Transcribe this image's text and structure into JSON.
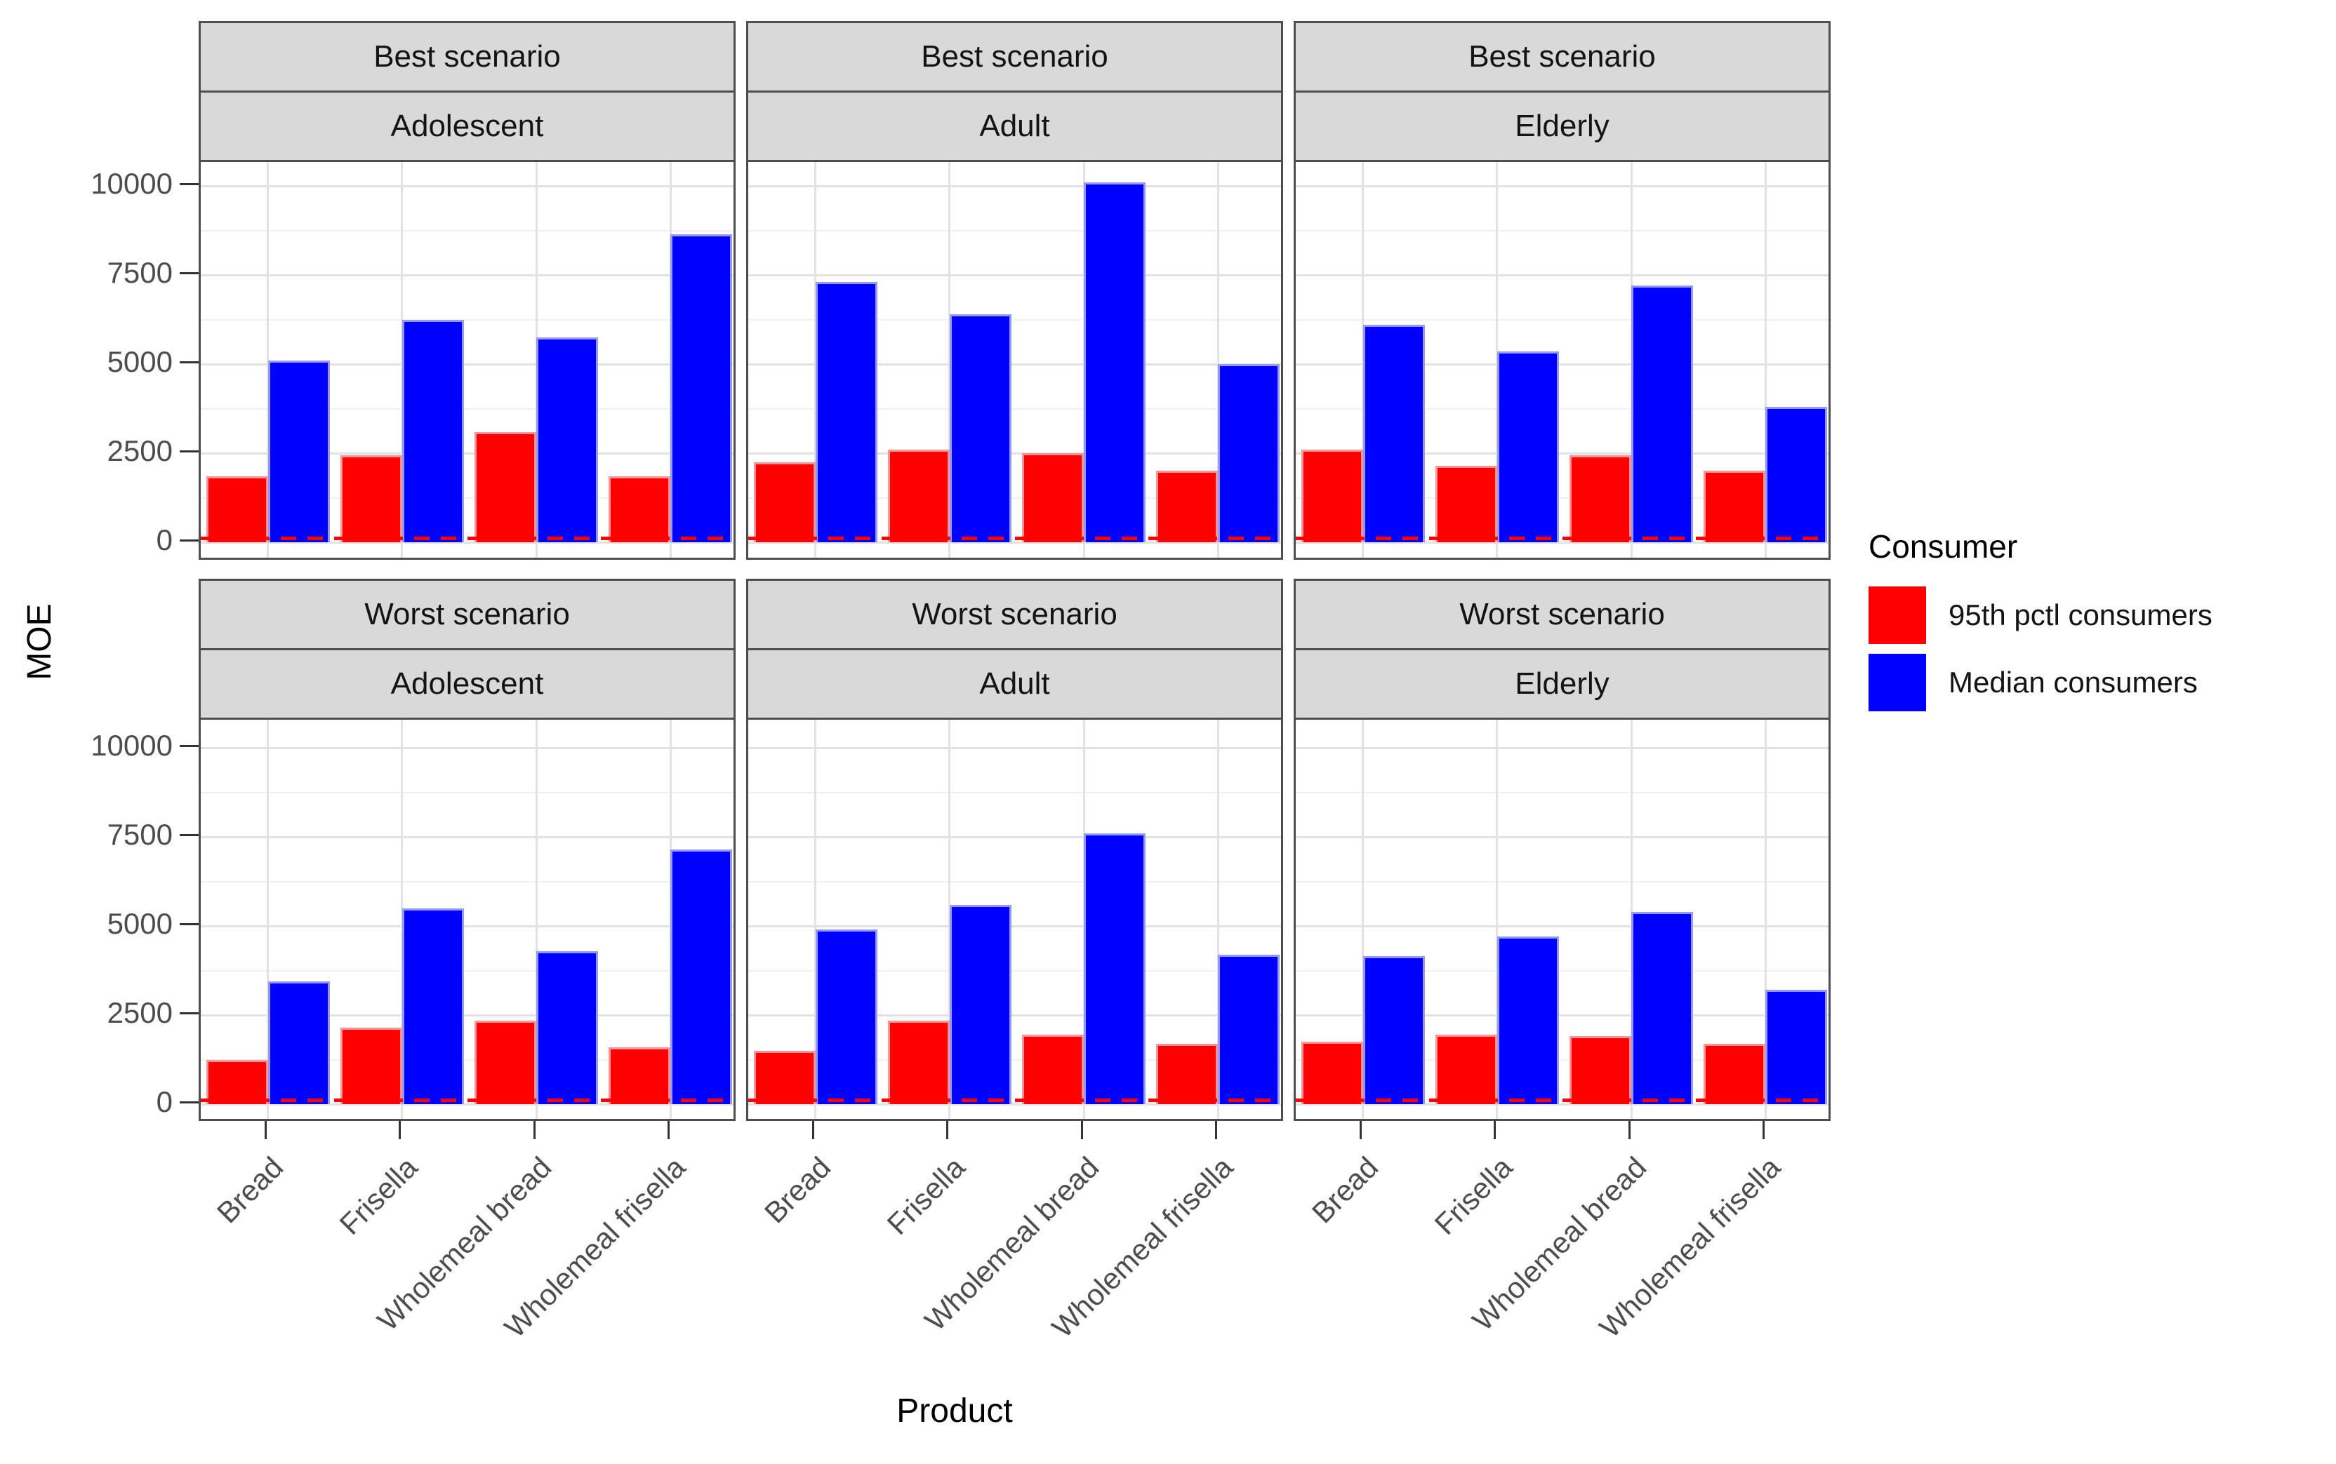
{
  "figure": {
    "background": "#FFFFFF"
  },
  "axes": {
    "y_title": "MOE",
    "x_title": "Product",
    "y_tick_labels": [
      "0",
      "2500",
      "5000",
      "7500",
      "10000"
    ]
  },
  "legend": {
    "title": "Consumer",
    "items": [
      {
        "label": "95th pctl consumers",
        "color": "#FF0000",
        "edge": "#FF9396"
      },
      {
        "label": "Median consumers",
        "color": "#0000FF",
        "edge": "#9598FF"
      }
    ]
  },
  "colors": {
    "strip_background": "#D9D9D9",
    "panel_border": "#4E4E4E",
    "grid_major": "#E2E2E2",
    "grid_minor": "#F0F0F0",
    "tick_text": "#4D4D4D",
    "reference_line": "#FF0000"
  },
  "chart_data": {
    "type": "bar",
    "title": "",
    "xlabel": "Product",
    "ylabel": "MOE",
    "y_ticks": [
      0,
      2500,
      5000,
      7500,
      10000
    ],
    "y_minor_ticks": [
      1250,
      3750,
      6250,
      8750
    ],
    "ylim": [
      -550,
      10680
    ],
    "grid": true,
    "legend_position": "right",
    "facet_rows": [
      "Best scenario",
      "Worst scenario"
    ],
    "facet_cols": [
      "Adolescent",
      "Adult",
      "Elderly"
    ],
    "categories": [
      "Bread",
      "Frisella",
      "Wholemeal bread",
      "Wholemeal frisella"
    ],
    "series_names": [
      "95th pctl consumers",
      "Median consumers"
    ],
    "reference_line": {
      "y": 100,
      "color": "#FF0000",
      "style": "dashed"
    },
    "panels": [
      {
        "scenario": "Best scenario",
        "group": "Adolescent",
        "series": [
          {
            "name": "95th pctl consumers",
            "values": [
              1850,
              2450,
              3100,
              1850
            ]
          },
          {
            "name": "Median consumers",
            "values": [
              5100,
              6250,
              5750,
              8650
            ]
          }
        ]
      },
      {
        "scenario": "Best scenario",
        "group": "Adult",
        "series": [
          {
            "name": "95th pctl consumers",
            "values": [
              2250,
              2600,
              2500,
              2000
            ]
          },
          {
            "name": "Median consumers",
            "values": [
              7300,
              6400,
              10100,
              5000
            ]
          }
        ]
      },
      {
        "scenario": "Best scenario",
        "group": "Elderly",
        "series": [
          {
            "name": "95th pctl consumers",
            "values": [
              2600,
              2150,
              2450,
              2000
            ]
          },
          {
            "name": "Median consumers",
            "values": [
              6100,
              5350,
              7200,
              3800
            ]
          }
        ]
      },
      {
        "scenario": "Worst scenario",
        "group": "Adolescent",
        "series": [
          {
            "name": "95th pctl consumers",
            "values": [
              1250,
              2150,
              2350,
              1600
            ]
          },
          {
            "name": "Median consumers",
            "values": [
              3450,
              5500,
              4300,
              7150
            ]
          }
        ]
      },
      {
        "scenario": "Worst scenario",
        "group": "Adult",
        "series": [
          {
            "name": "95th pctl consumers",
            "values": [
              1500,
              2350,
              1950,
              1700
            ]
          },
          {
            "name": "Median consumers",
            "values": [
              4900,
              5600,
              7600,
              4200
            ]
          }
        ]
      },
      {
        "scenario": "Worst scenario",
        "group": "Elderly",
        "series": [
          {
            "name": "95th pctl consumers",
            "values": [
              1750,
              1950,
              1900,
              1700
            ]
          },
          {
            "name": "Median consumers",
            "values": [
              4150,
              4700,
              5400,
              3200
            ]
          }
        ]
      }
    ]
  }
}
